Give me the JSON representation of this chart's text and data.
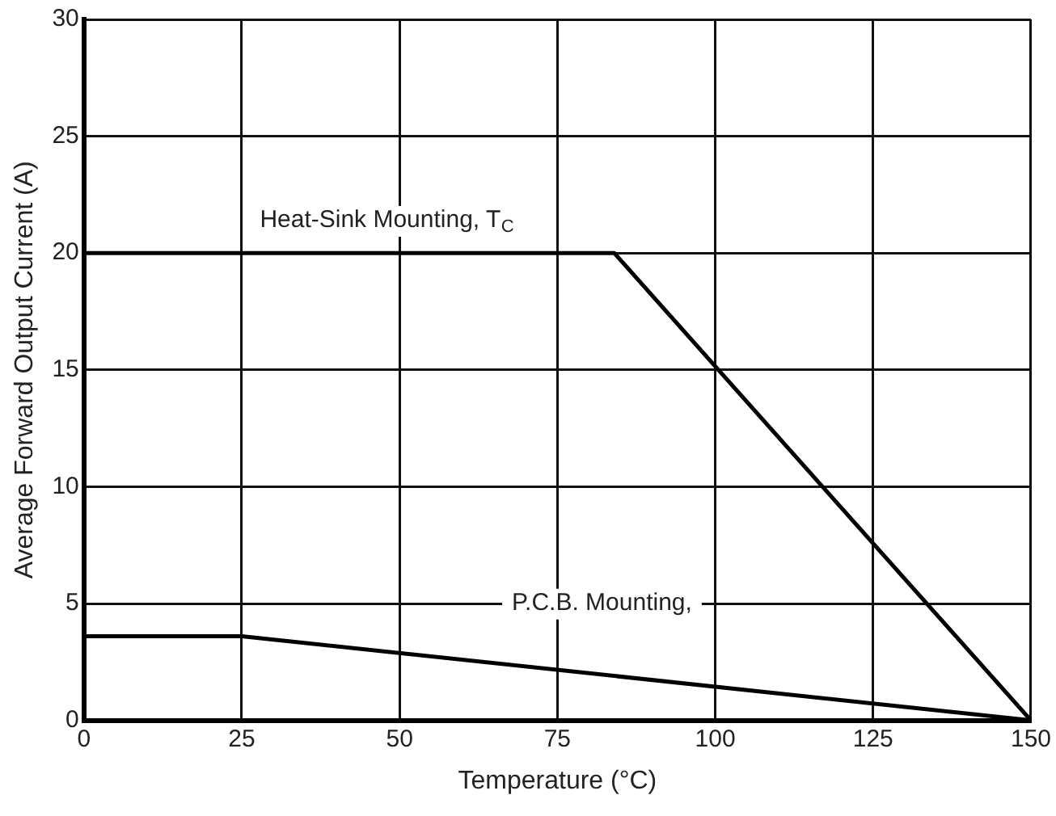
{
  "chart_data": {
    "type": "line",
    "xlabel": "Temperature (°C)",
    "ylabel": "Average Forward Output Current (A)",
    "series": [
      {
        "color": "#000000",
        "x": [
          0,
          84,
          150
        ],
        "values": [
          20,
          20,
          0
        ]
      },
      {
        "color": "#000000",
        "x": [
          0,
          25,
          150
        ],
        "values": [
          3.6,
          3.6,
          0
        ]
      }
    ],
    "xlim": [
      0,
      150
    ],
    "xticks": [
      0,
      25,
      50,
      75,
      100,
      125,
      150
    ],
    "ylim": [
      0,
      30
    ],
    "yticks": [
      0,
      5,
      10,
      15,
      20,
      25,
      30
    ],
    "grid": true,
    "legend": false,
    "marker": "none",
    "line_style": "solid",
    "annotations": [
      "Heat-Sink Mounting, T$_{C}$",
      "P.C.B. Mounting,"
    ]
  }
}
